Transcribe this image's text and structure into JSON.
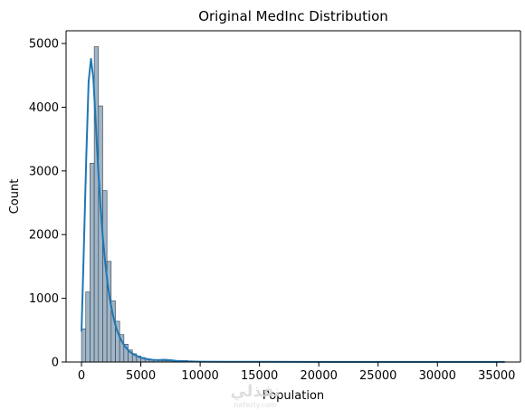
{
  "chart_data": {
    "type": "bar",
    "title": "Original MedInc Distribution",
    "xlabel": "Population",
    "ylabel": "Count",
    "xlim": [
      -1300,
      37000
    ],
    "ylim": [
      0,
      5200
    ],
    "xticks": [
      0,
      5000,
      10000,
      15000,
      20000,
      25000,
      30000,
      35000
    ],
    "yticks": [
      0,
      1000,
      2000,
      3000,
      4000,
      5000
    ],
    "bin_width": 357,
    "bin_start": 3,
    "bar_fill": "#a0b5c6",
    "bar_edge": "#2f3f4c",
    "kde_color": "#1f77b4",
    "grid": false,
    "values": [
      520,
      1100,
      3120,
      4950,
      4020,
      2690,
      1580,
      960,
      640,
      430,
      280,
      190,
      130,
      95,
      70,
      52,
      40,
      31,
      24,
      20,
      18,
      17,
      16,
      20,
      24,
      18,
      13,
      10,
      8,
      7,
      6,
      5,
      5,
      4,
      4,
      3,
      3,
      3,
      3,
      2,
      2,
      2,
      2,
      2,
      1,
      1,
      1,
      1,
      1,
      1,
      1,
      1,
      1,
      1,
      1,
      1,
      0,
      0,
      0,
      0,
      0,
      0,
      0,
      0,
      0,
      0,
      0,
      0,
      0,
      0,
      0,
      0,
      0,
      0,
      0,
      0,
      0,
      0,
      0,
      0,
      0,
      0,
      0,
      0,
      0,
      0,
      0,
      0,
      0,
      0,
      0,
      0,
      0,
      0,
      0,
      0,
      0,
      0,
      0,
      2
    ],
    "kde": {
      "x": [
        3,
        200,
        400,
        600,
        800,
        1000,
        1200,
        1400,
        1600,
        1800,
        2000,
        2200,
        2400,
        2600,
        2800,
        3000,
        3300,
        3600,
        4000,
        4500,
        5000,
        5500,
        6000,
        6500,
        7000,
        7500,
        8000,
        9000,
        10000,
        12000,
        15000,
        20000,
        25000,
        30000,
        35682
      ],
      "y": [
        480,
        1800,
        3200,
        4400,
        4760,
        4450,
        3750,
        3050,
        2450,
        1950,
        1560,
        1230,
        980,
        780,
        620,
        490,
        360,
        260,
        170,
        110,
        70,
        48,
        34,
        30,
        36,
        28,
        18,
        10,
        6,
        4,
        3,
        2,
        1,
        1,
        1
      ]
    }
  },
  "watermark": {
    "text": "نفذلي",
    "subtext": "nafezly.com"
  }
}
